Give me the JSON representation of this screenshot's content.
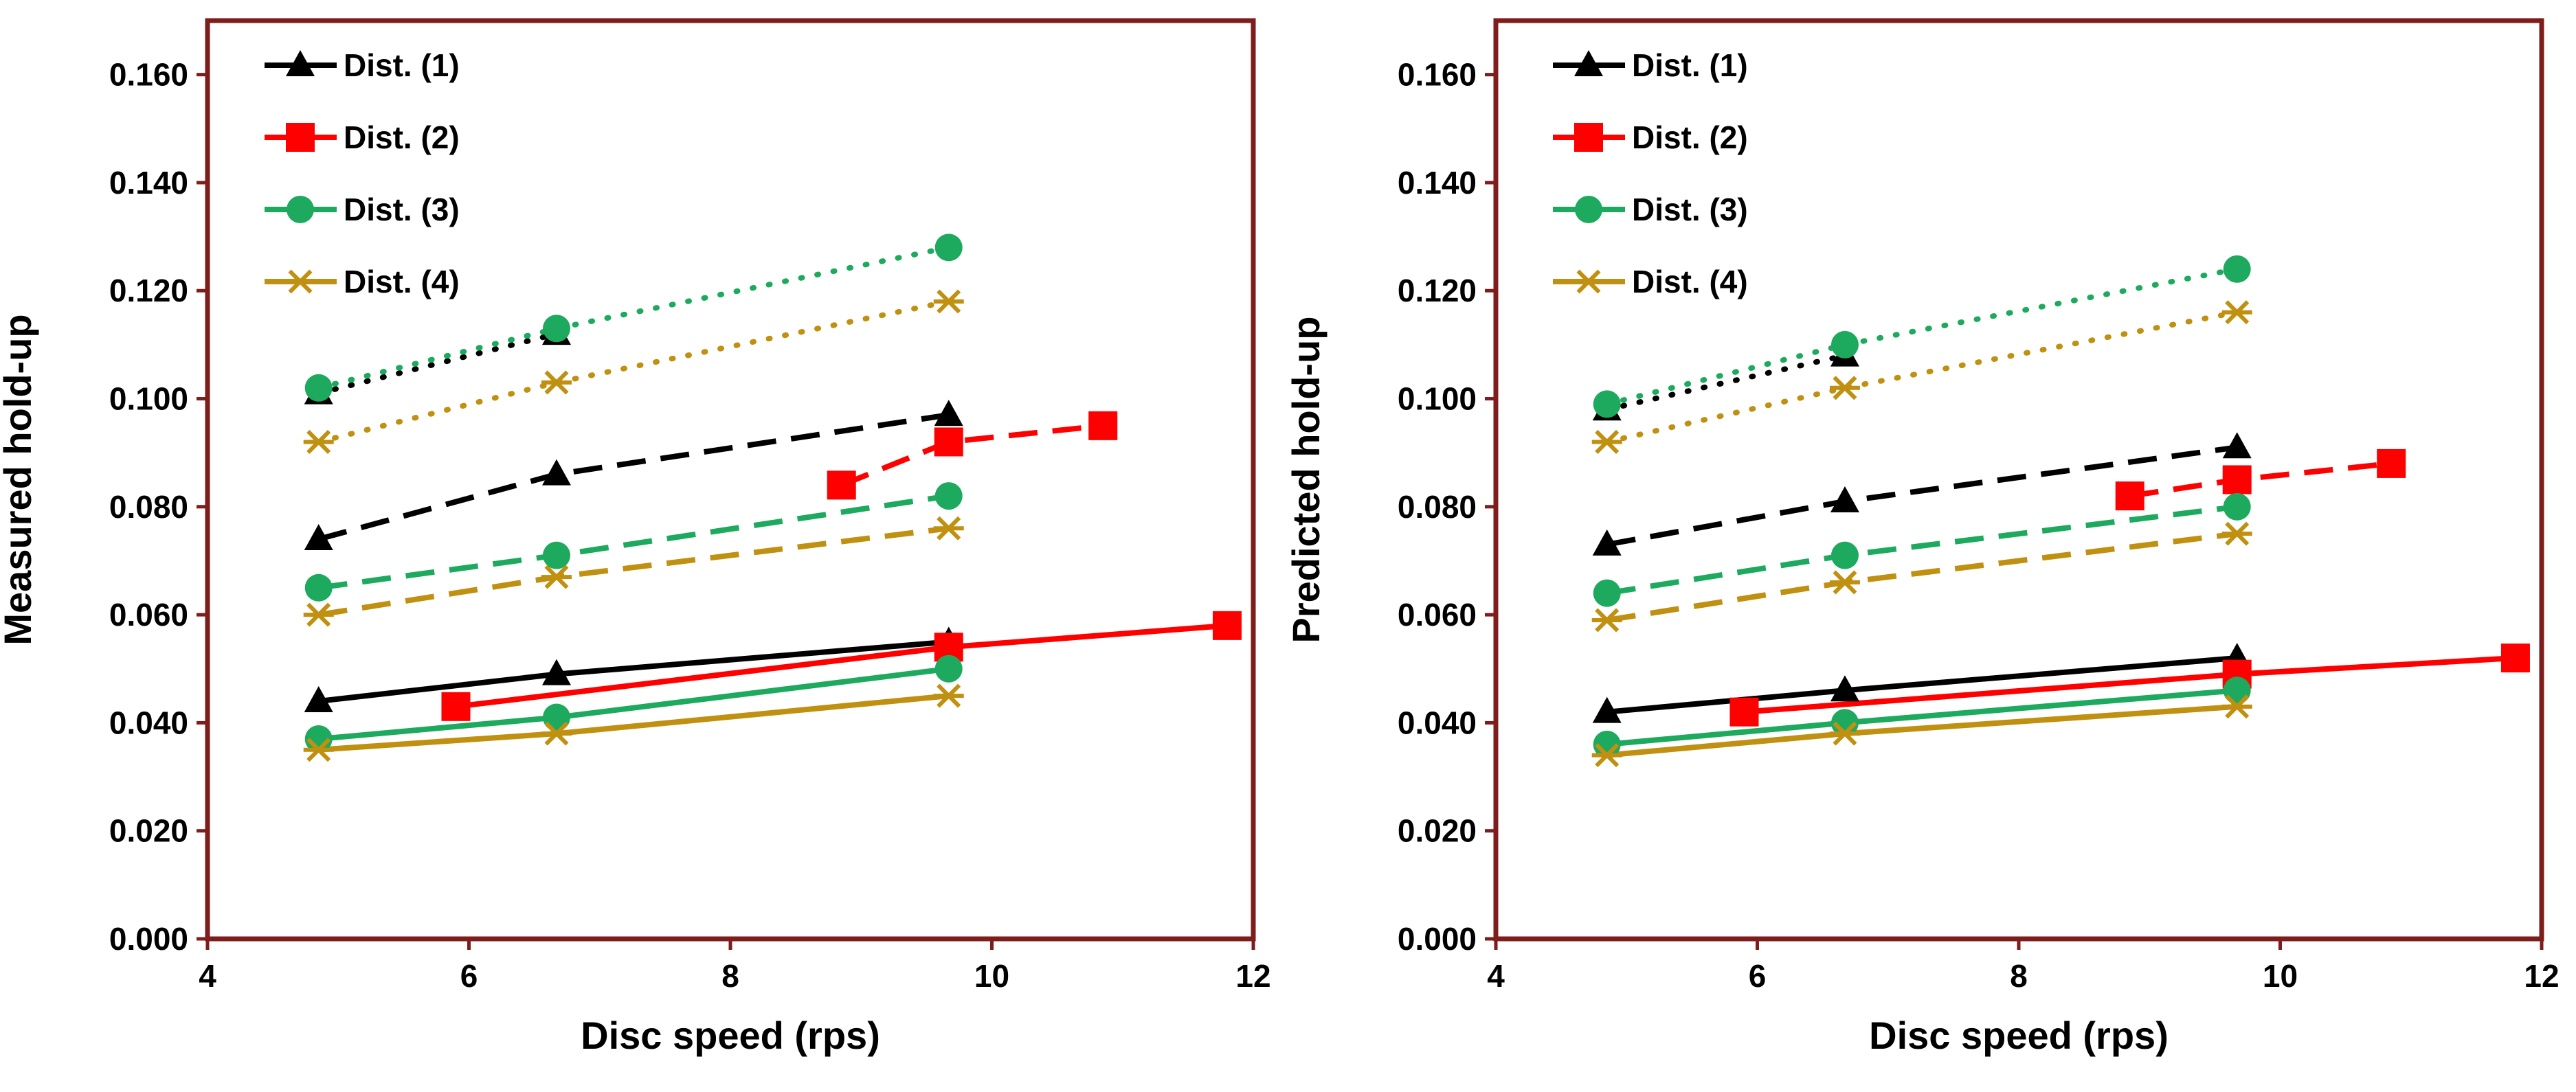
{
  "legend": [
    "Dist. (1)",
    "Dist. (2)",
    "Dist. (3)",
    "Dist. (4)"
  ],
  "colors": {
    "frame": "#7F1C1C",
    "dist1": "#000000",
    "dist2": "#FF0000",
    "dist3": "#1DAA5E",
    "dist4": "#C09010"
  },
  "markers": [
    "triangle",
    "square",
    "circle",
    "asterisk"
  ],
  "line_styles": [
    "solid",
    "dashed",
    "dotted"
  ],
  "chart_data": [
    {
      "type": "line",
      "xlabel": "Disc speed (rps)",
      "ylabel": "Measured hold-up",
      "xlim": [
        4,
        12
      ],
      "ylim": [
        0,
        0.17
      ],
      "x_ticks": [
        "4",
        "6",
        "8",
        "10",
        "12"
      ],
      "y_ticks": [
        "0.000",
        "0.020",
        "0.040",
        "0.060",
        "0.080",
        "0.100",
        "0.120",
        "0.140",
        "0.160"
      ],
      "series": [
        {
          "name": "Dist. (1)",
          "style": "solid",
          "x": [
            4.85,
            6.67,
            9.67
          ],
          "y": [
            0.044,
            0.049,
            0.055
          ]
        },
        {
          "name": "Dist. (1)",
          "style": "dashed",
          "x": [
            4.85,
            6.67,
            9.67
          ],
          "y": [
            0.074,
            0.086,
            0.097
          ]
        },
        {
          "name": "Dist. (1)",
          "style": "dotted",
          "x": [
            4.85,
            6.67
          ],
          "y": [
            0.101,
            0.112
          ]
        },
        {
          "name": "Dist. (2)",
          "style": "solid",
          "x": [
            5.9,
            9.67,
            11.8
          ],
          "y": [
            0.043,
            0.054,
            0.058
          ]
        },
        {
          "name": "Dist. (2)",
          "style": "dashed",
          "x": [
            8.85,
            9.67,
            10.85
          ],
          "y": [
            0.084,
            0.092,
            0.095
          ]
        },
        {
          "name": "Dist. (3)",
          "style": "solid",
          "x": [
            4.85,
            6.67,
            9.67
          ],
          "y": [
            0.037,
            0.041,
            0.05
          ]
        },
        {
          "name": "Dist. (3)",
          "style": "dashed",
          "x": [
            4.85,
            6.67,
            9.67
          ],
          "y": [
            0.065,
            0.071,
            0.082
          ]
        },
        {
          "name": "Dist. (3)",
          "style": "dotted",
          "x": [
            4.85,
            6.67,
            9.67
          ],
          "y": [
            0.102,
            0.113,
            0.128
          ]
        },
        {
          "name": "Dist. (4)",
          "style": "solid",
          "x": [
            4.85,
            6.67,
            9.67
          ],
          "y": [
            0.035,
            0.038,
            0.045
          ]
        },
        {
          "name": "Dist. (4)",
          "style": "dashed",
          "x": [
            4.85,
            6.67,
            9.67
          ],
          "y": [
            0.06,
            0.067,
            0.076
          ]
        },
        {
          "name": "Dist. (4)",
          "style": "dotted",
          "x": [
            4.85,
            6.67,
            9.67
          ],
          "y": [
            0.092,
            0.103,
            0.118
          ]
        }
      ]
    },
    {
      "type": "line",
      "xlabel": "Disc speed (rps)",
      "ylabel": "Predicted hold-up",
      "xlim": [
        4,
        12
      ],
      "ylim": [
        0,
        0.17
      ],
      "x_ticks": [
        "4",
        "6",
        "8",
        "10",
        "12"
      ],
      "y_ticks": [
        "0.000",
        "0.020",
        "0.040",
        "0.060",
        "0.080",
        "0.100",
        "0.120",
        "0.140",
        "0.160"
      ],
      "series": [
        {
          "name": "Dist. (1)",
          "style": "solid",
          "x": [
            4.85,
            6.67,
            9.67
          ],
          "y": [
            0.042,
            0.046,
            0.052
          ]
        },
        {
          "name": "Dist. (1)",
          "style": "dashed",
          "x": [
            4.85,
            6.67,
            9.67
          ],
          "y": [
            0.073,
            0.081,
            0.091
          ]
        },
        {
          "name": "Dist. (1)",
          "style": "dotted",
          "x": [
            4.85,
            6.67
          ],
          "y": [
            0.098,
            0.108
          ]
        },
        {
          "name": "Dist. (2)",
          "style": "solid",
          "x": [
            5.9,
            9.67,
            11.8
          ],
          "y": [
            0.042,
            0.049,
            0.052
          ]
        },
        {
          "name": "Dist. (2)",
          "style": "dashed",
          "x": [
            8.85,
            9.67,
            10.85
          ],
          "y": [
            0.082,
            0.085,
            0.088
          ]
        },
        {
          "name": "Dist. (3)",
          "style": "solid",
          "x": [
            4.85,
            6.67,
            9.67
          ],
          "y": [
            0.036,
            0.04,
            0.046
          ]
        },
        {
          "name": "Dist. (3)",
          "style": "dashed",
          "x": [
            4.85,
            6.67,
            9.67
          ],
          "y": [
            0.064,
            0.071,
            0.08
          ]
        },
        {
          "name": "Dist. (3)",
          "style": "dotted",
          "x": [
            4.85,
            6.67,
            9.67
          ],
          "y": [
            0.099,
            0.11,
            0.124
          ]
        },
        {
          "name": "Dist. (4)",
          "style": "solid",
          "x": [
            4.85,
            6.67,
            9.67
          ],
          "y": [
            0.034,
            0.038,
            0.043
          ]
        },
        {
          "name": "Dist. (4)",
          "style": "dashed",
          "x": [
            4.85,
            6.67,
            9.67
          ],
          "y": [
            0.059,
            0.066,
            0.075
          ]
        },
        {
          "name": "Dist. (4)",
          "style": "dotted",
          "x": [
            4.85,
            6.67,
            9.67
          ],
          "y": [
            0.092,
            0.102,
            0.116
          ]
        }
      ]
    }
  ]
}
